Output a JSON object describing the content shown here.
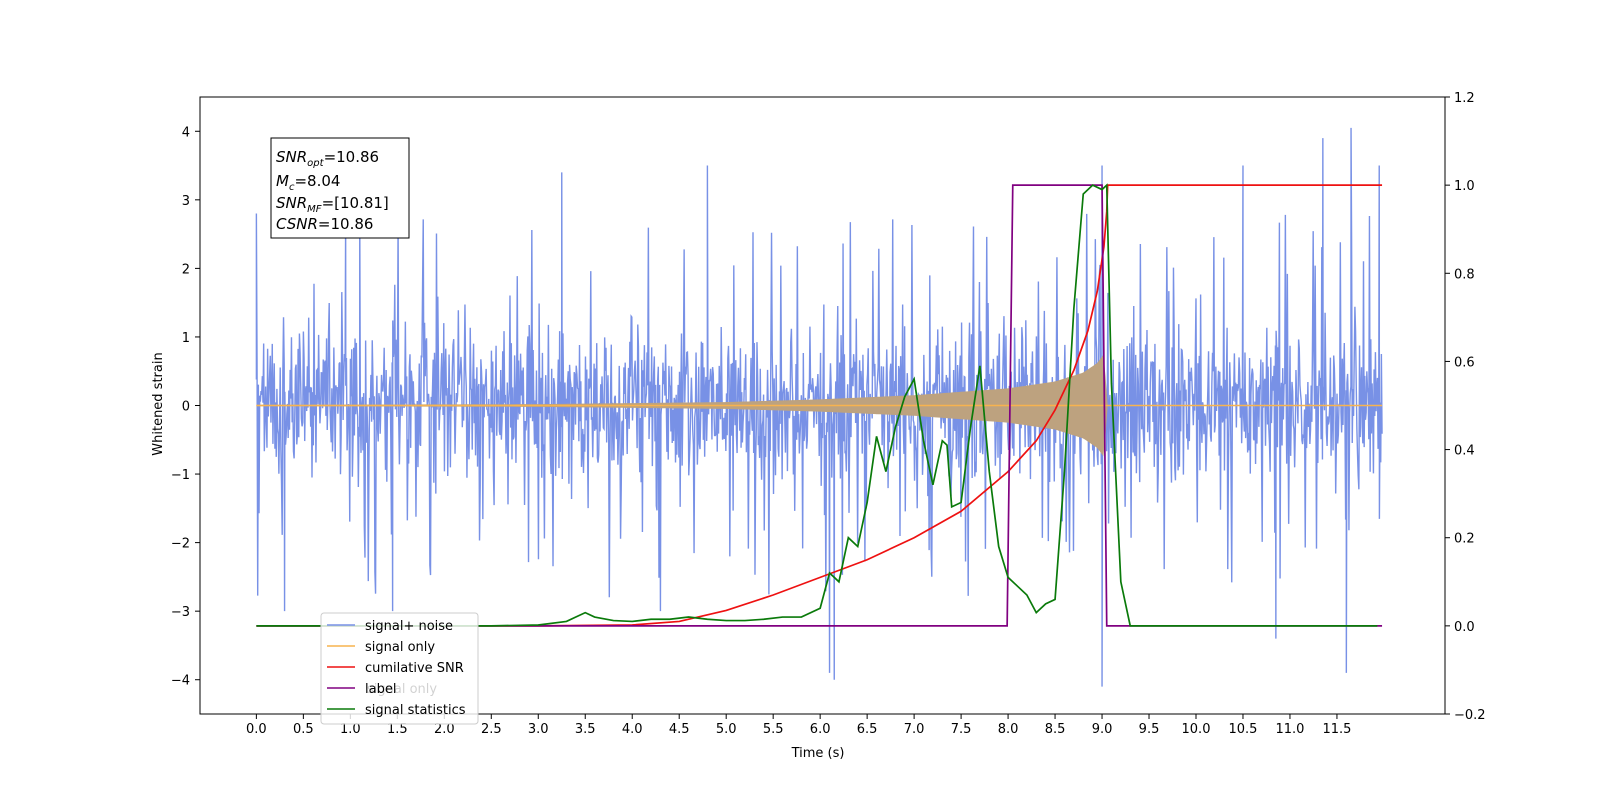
{
  "chart_data": {
    "type": "line",
    "xlabel": "Time (s)",
    "ylabel_left": "Whitened strain",
    "ylabel_right": "",
    "xlim": [
      -0.6,
      12.65
    ],
    "ylim_left": [
      -4.5,
      4.5
    ],
    "ylim_right": [
      -0.2,
      1.2
    ],
    "x_ticks": [
      "0.0",
      "0.5",
      "1.0",
      "1.5",
      "2.0",
      "2.5",
      "3.0",
      "3.5",
      "4.0",
      "4.5",
      "5.0",
      "5.5",
      "6.0",
      "6.5",
      "7.0",
      "7.5",
      "8.0",
      "8.5",
      "9.0",
      "9.5",
      "10.0",
      "10.5",
      "11.0",
      "11.5"
    ],
    "y_left_ticks": [
      "−4",
      "−3",
      "−2",
      "−1",
      "0",
      "1",
      "2",
      "3",
      "4"
    ],
    "y_right_ticks": [
      "−0.2",
      "0.0",
      "0.2",
      "0.4",
      "0.6",
      "0.8",
      "1.0",
      "1.2"
    ],
    "grid": false,
    "legend_position": "lower-left",
    "legend": [
      "signal+ noise",
      "signal only",
      "cumilative SNR",
      "label",
      "signal statistics"
    ],
    "legend_overlay_faint": "signal only",
    "annotation_box": {
      "lines": [
        {
          "main": "SNR",
          "sub": "opt",
          "value": "=10.86"
        },
        {
          "main": "M",
          "sub": "c",
          "value": "=8.04"
        },
        {
          "main": "SNR",
          "sub": "MF",
          "value": "=[10.81]"
        },
        {
          "main": "CSNR",
          "sub": "",
          "value": "=10.86"
        }
      ]
    },
    "colors": {
      "noise": "#7891e6",
      "signal": "#f7b34f",
      "chirp_fill": "#bda27f",
      "csnr": "#ee1111",
      "label": "#800080",
      "stats": "#0a7a0a"
    },
    "series": [
      {
        "name": "signal+ noise",
        "axis": "left",
        "kind": "noise",
        "x_range": [
          0.0,
          11.98
        ],
        "band": [
          -1.2,
          1.2
        ],
        "extremes": [
          {
            "x": 0.95,
            "y": 2.7
          },
          {
            "x": 1.1,
            "y": 2.9
          },
          {
            "x": 1.45,
            "y": -3.0
          },
          {
            "x": 3.25,
            "y": 3.4
          },
          {
            "x": 4.3,
            "y": -3.0
          },
          {
            "x": 4.8,
            "y": 3.5
          },
          {
            "x": 6.1,
            "y": -3.9
          },
          {
            "x": 6.15,
            "y": -4.0
          },
          {
            "x": 9.0,
            "y": 3.5
          },
          {
            "x": 9.0,
            "y": -4.1
          },
          {
            "x": 10.5,
            "y": 3.5
          },
          {
            "x": 10.85,
            "y": -3.4
          },
          {
            "x": 11.35,
            "y": 3.9
          },
          {
            "x": 11.65,
            "y": 4.05
          },
          {
            "x": 11.6,
            "y": -3.9
          },
          {
            "x": 11.95,
            "y": 3.5
          },
          {
            "x": 0.0,
            "y": 2.8
          },
          {
            "x": 0.3,
            "y": -3.0
          }
        ]
      },
      {
        "name": "signal only",
        "axis": "left",
        "kind": "chirp",
        "x_range": [
          0.0,
          11.98
        ],
        "envelope": [
          [
            0.0,
            0.01
          ],
          [
            3.0,
            0.02
          ],
          [
            5.0,
            0.05
          ],
          [
            6.0,
            0.09
          ],
          [
            7.0,
            0.15
          ],
          [
            7.5,
            0.2
          ],
          [
            8.0,
            0.25
          ],
          [
            8.5,
            0.35
          ],
          [
            8.8,
            0.48
          ],
          [
            8.95,
            0.62
          ],
          [
            9.02,
            0.75
          ],
          [
            9.06,
            0.0
          ]
        ]
      },
      {
        "name": "cumilative SNR",
        "axis": "right",
        "x": [
          0.0,
          3.0,
          4.0,
          4.5,
          5.0,
          5.5,
          6.0,
          6.5,
          7.0,
          7.5,
          8.0,
          8.3,
          8.5,
          8.7,
          8.85,
          8.95,
          9.02,
          9.05,
          9.06,
          11.98
        ],
        "values": [
          0.0,
          0.0,
          0.002,
          0.01,
          0.035,
          0.07,
          0.11,
          0.15,
          0.2,
          0.26,
          0.35,
          0.42,
          0.49,
          0.58,
          0.67,
          0.76,
          0.86,
          0.94,
          1.0,
          1.0
        ]
      },
      {
        "name": "label",
        "axis": "right",
        "x": [
          0.0,
          7.99,
          8.05,
          9.0,
          9.05,
          11.98
        ],
        "values": [
          0.0,
          0.0,
          1.0,
          1.0,
          0.0,
          0.0
        ]
      },
      {
        "name": "signal statistics",
        "axis": "right",
        "x": [
          0.0,
          2.5,
          3.0,
          3.3,
          3.4,
          3.5,
          3.6,
          3.8,
          4.0,
          4.2,
          4.4,
          4.6,
          4.8,
          5.0,
          5.2,
          5.4,
          5.6,
          5.8,
          6.0,
          6.05,
          6.1,
          6.2,
          6.3,
          6.4,
          6.5,
          6.6,
          6.7,
          6.8,
          6.9,
          7.0,
          7.1,
          7.2,
          7.3,
          7.35,
          7.4,
          7.5,
          7.6,
          7.7,
          7.8,
          7.9,
          8.0,
          8.1,
          8.2,
          8.3,
          8.4,
          8.5,
          8.6,
          8.7,
          8.8,
          8.9,
          9.0,
          9.05,
          9.1,
          9.2,
          9.3,
          11.93
        ],
        "values": [
          0.0,
          0.0,
          0.002,
          0.01,
          0.02,
          0.03,
          0.02,
          0.012,
          0.01,
          0.015,
          0.015,
          0.02,
          0.015,
          0.012,
          0.012,
          0.015,
          0.02,
          0.02,
          0.04,
          0.08,
          0.12,
          0.1,
          0.2,
          0.18,
          0.28,
          0.43,
          0.35,
          0.45,
          0.52,
          0.56,
          0.42,
          0.32,
          0.42,
          0.41,
          0.27,
          0.28,
          0.45,
          0.59,
          0.35,
          0.18,
          0.11,
          0.09,
          0.07,
          0.03,
          0.05,
          0.06,
          0.35,
          0.72,
          0.98,
          1.0,
          0.99,
          1.0,
          0.55,
          0.1,
          0.0,
          0.0
        ]
      }
    ]
  }
}
